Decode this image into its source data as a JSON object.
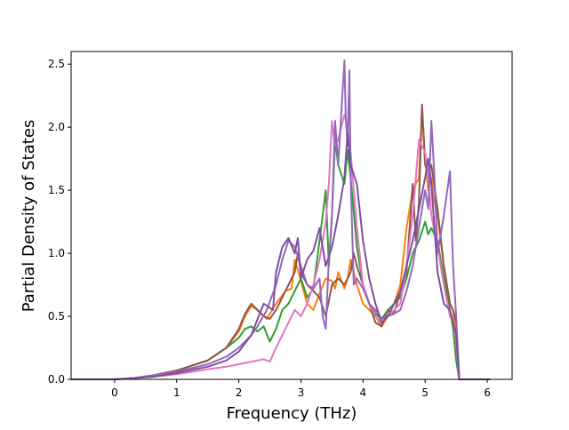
{
  "chart_data": {
    "type": "line",
    "title": "",
    "xlabel": "Frequency (THz)",
    "ylabel": "Partial Density of States",
    "xlim": [
      -0.7,
      6.4
    ],
    "ylim": [
      0,
      2.6
    ],
    "xticks": [
      0,
      1,
      2,
      3,
      4,
      5,
      6
    ],
    "yticks": [
      0.0,
      0.5,
      1.0,
      1.5,
      2.0,
      2.5
    ],
    "xtick_labels": [
      "0",
      "1",
      "2",
      "3",
      "4",
      "5",
      "6"
    ],
    "ytick_labels": [
      "0.0",
      "0.5",
      "1.0",
      "1.5",
      "2.0",
      "2.5"
    ],
    "grid": false,
    "legend": "none",
    "series": [
      {
        "color": "#ff7f0e",
        "x": [
          -0.7,
          0,
          0.3,
          0.6,
          1.0,
          1.5,
          1.8,
          2.0,
          2.1,
          2.2,
          2.3,
          2.45,
          2.6,
          2.75,
          2.85,
          2.9,
          3.0,
          3.1,
          3.2,
          3.3,
          3.4,
          3.5,
          3.55,
          3.6,
          3.7,
          3.75,
          3.8,
          3.9,
          4.0,
          4.1,
          4.2,
          4.3,
          4.4,
          4.5,
          4.6,
          4.7,
          4.8,
          4.9,
          4.95,
          5.0,
          5.05,
          5.1,
          5.15,
          5.2,
          5.3,
          5.4,
          5.45,
          5.5,
          5.55,
          6.05
        ],
        "values": [
          0,
          0,
          0.01,
          0.03,
          0.07,
          0.15,
          0.25,
          0.38,
          0.5,
          0.58,
          0.55,
          0.48,
          0.6,
          0.7,
          0.72,
          0.95,
          0.78,
          0.6,
          0.55,
          0.68,
          0.8,
          0.78,
          0.72,
          0.85,
          0.72,
          0.8,
          0.95,
          0.75,
          0.6,
          0.55,
          0.5,
          0.42,
          0.5,
          0.6,
          0.75,
          1.2,
          1.5,
          1.6,
          2.15,
          1.75,
          1.5,
          1.6,
          1.4,
          1.3,
          0.9,
          0.6,
          0.55,
          0.3,
          0,
          0
        ]
      },
      {
        "color": "#2ca02c",
        "x": [
          -0.7,
          0,
          0.3,
          0.6,
          1.0,
          1.5,
          1.8,
          2.0,
          2.1,
          2.2,
          2.3,
          2.4,
          2.5,
          2.6,
          2.7,
          2.8,
          2.9,
          3.0,
          3.1,
          3.2,
          3.3,
          3.4,
          3.45,
          3.5,
          3.55,
          3.6,
          3.7,
          3.75,
          3.8,
          3.9,
          4.0,
          4.1,
          4.2,
          4.3,
          4.4,
          4.5,
          4.6,
          4.7,
          4.8,
          4.9,
          5.0,
          5.05,
          5.1,
          5.2,
          5.3,
          5.4,
          5.45,
          5.5,
          5.55,
          6.05
        ],
        "values": [
          0,
          0,
          0.01,
          0.03,
          0.07,
          0.15,
          0.25,
          0.33,
          0.4,
          0.42,
          0.38,
          0.42,
          0.3,
          0.4,
          0.55,
          0.6,
          0.7,
          0.8,
          0.65,
          0.72,
          1.1,
          1.5,
          0.9,
          1.3,
          1.9,
          1.7,
          1.55,
          1.82,
          1.6,
          1.05,
          0.75,
          0.6,
          0.52,
          0.48,
          0.55,
          0.6,
          0.65,
          0.8,
          1.0,
          1.1,
          1.25,
          1.15,
          1.2,
          1.1,
          0.8,
          0.55,
          0.4,
          0.15,
          0,
          0
        ]
      },
      {
        "color": "#8c564b",
        "x": [
          -0.7,
          0,
          0.3,
          0.6,
          1.0,
          1.5,
          1.8,
          2.0,
          2.1,
          2.2,
          2.3,
          2.4,
          2.5,
          2.6,
          2.7,
          2.8,
          2.9,
          2.95,
          3.0,
          3.1,
          3.2,
          3.3,
          3.4,
          3.5,
          3.6,
          3.7,
          3.8,
          3.85,
          3.9,
          4.0,
          4.1,
          4.2,
          4.3,
          4.4,
          4.5,
          4.6,
          4.7,
          4.8,
          4.85,
          4.9,
          4.95,
          5.0,
          5.05,
          5.1,
          5.2,
          5.3,
          5.4,
          5.45,
          5.5,
          5.55,
          6.05
        ],
        "values": [
          0,
          0,
          0.01,
          0.03,
          0.07,
          0.15,
          0.25,
          0.4,
          0.52,
          0.6,
          0.55,
          0.5,
          0.48,
          0.55,
          0.65,
          0.75,
          0.85,
          1.0,
          0.85,
          0.75,
          0.7,
          0.65,
          0.5,
          0.75,
          0.8,
          0.75,
          0.85,
          1.0,
          0.9,
          0.75,
          0.6,
          0.45,
          0.42,
          0.55,
          0.52,
          0.7,
          0.85,
          1.55,
          1.1,
          1.4,
          2.18,
          1.7,
          1.65,
          1.7,
          1.35,
          0.9,
          0.6,
          0.55,
          0.45,
          0,
          0
        ]
      },
      {
        "color": "#e377c2",
        "x": [
          -0.7,
          0,
          0.3,
          0.6,
          1.0,
          1.5,
          1.8,
          2.0,
          2.2,
          2.4,
          2.5,
          2.6,
          2.7,
          2.8,
          2.9,
          3.0,
          3.1,
          3.2,
          3.3,
          3.4,
          3.45,
          3.5,
          3.55,
          3.6,
          3.7,
          3.75,
          3.8,
          3.9,
          4.0,
          4.1,
          4.2,
          4.3,
          4.4,
          4.5,
          4.6,
          4.7,
          4.8,
          4.9,
          5.0,
          5.05,
          5.1,
          5.2,
          5.3,
          5.4,
          5.45,
          5.5,
          5.55,
          6.05
        ],
        "values": [
          0,
          0,
          0.01,
          0.02,
          0.04,
          0.08,
          0.1,
          0.12,
          0.14,
          0.16,
          0.14,
          0.25,
          0.35,
          0.45,
          0.55,
          0.5,
          0.6,
          0.75,
          0.95,
          1.25,
          1.55,
          2.05,
          1.85,
          1.9,
          2.1,
          2.0,
          1.8,
          1.2,
          0.75,
          0.6,
          0.5,
          0.45,
          0.5,
          0.55,
          0.6,
          0.9,
          1.3,
          1.9,
          1.8,
          1.6,
          1.3,
          1.05,
          0.75,
          0.5,
          0.45,
          0.3,
          0,
          0
        ]
      },
      {
        "color": "#9467bd",
        "x": [
          -0.7,
          0,
          0.3,
          0.6,
          1.0,
          1.5,
          1.8,
          2.0,
          2.1,
          2.2,
          2.3,
          2.45,
          2.6,
          2.7,
          2.8,
          2.9,
          3.0,
          3.1,
          3.2,
          3.3,
          3.35,
          3.4,
          3.45,
          3.5,
          3.55,
          3.6,
          3.7,
          3.72,
          3.75,
          3.78,
          3.8,
          3.85,
          3.9,
          4.0,
          4.1,
          4.2,
          4.3,
          4.4,
          4.5,
          4.6,
          4.7,
          4.8,
          4.9,
          5.0,
          5.05,
          5.1,
          5.15,
          5.2,
          5.3,
          5.4,
          5.45,
          5.5,
          5.55,
          6.05
        ],
        "values": [
          0,
          0,
          0.01,
          0.03,
          0.06,
          0.12,
          0.18,
          0.25,
          0.3,
          0.35,
          0.42,
          0.55,
          0.75,
          0.95,
          1.1,
          1.05,
          0.9,
          0.75,
          0.72,
          0.8,
          0.5,
          0.4,
          0.95,
          1.3,
          2.05,
          1.7,
          2.53,
          2.1,
          1.85,
          2.45,
          1.6,
          0.75,
          0.8,
          0.72,
          0.6,
          0.55,
          0.48,
          0.5,
          0.52,
          0.55,
          0.7,
          0.9,
          1.2,
          1.5,
          1.35,
          2.05,
          1.6,
          1.0,
          1.3,
          1.65,
          0.9,
          0.5,
          0,
          0
        ]
      },
      {
        "color": "#7f4fa0",
        "x": [
          -0.7,
          0,
          0.3,
          0.6,
          1.0,
          1.5,
          1.8,
          2.0,
          2.2,
          2.4,
          2.55,
          2.6,
          2.7,
          2.8,
          2.9,
          2.95,
          3.0,
          3.1,
          3.2,
          3.3,
          3.4,
          3.5,
          3.6,
          3.7,
          3.75,
          3.8,
          3.9,
          4.0,
          4.1,
          4.2,
          4.3,
          4.4,
          4.5,
          4.6,
          4.7,
          4.8,
          4.9,
          5.0,
          5.05,
          5.1,
          5.2,
          5.3,
          5.4,
          5.45,
          5.5,
          5.55,
          6.05
        ],
        "values": [
          0,
          0,
          0.01,
          0.02,
          0.05,
          0.1,
          0.15,
          0.22,
          0.35,
          0.6,
          0.55,
          0.85,
          1.05,
          1.12,
          1.0,
          1.12,
          0.8,
          0.95,
          1.02,
          1.2,
          0.9,
          1.05,
          1.3,
          1.6,
          1.95,
          1.7,
          1.55,
          1.1,
          0.8,
          0.6,
          0.45,
          0.5,
          0.6,
          0.7,
          0.9,
          1.1,
          1.35,
          1.6,
          1.75,
          1.55,
          0.85,
          0.6,
          0.55,
          0.45,
          0.35,
          0,
          0
        ]
      }
    ]
  }
}
